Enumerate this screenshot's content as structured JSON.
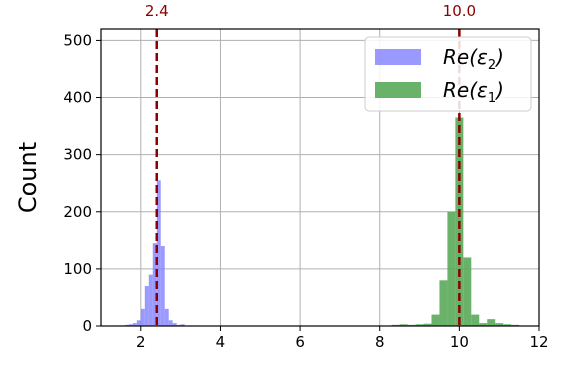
{
  "chart_data": {
    "type": "bar",
    "ylabel": "Count",
    "xlim": [
      1,
      12
    ],
    "ylim": [
      0,
      520
    ],
    "xticks": [
      "2",
      "4",
      "6",
      "8",
      "10",
      "12"
    ],
    "yticks": [
      "0",
      "100",
      "200",
      "300",
      "400",
      "500"
    ],
    "grid": true,
    "legend_position": "top-right",
    "vlines": [
      {
        "x": 2.4,
        "label": "2.4",
        "color": "#8b0000"
      },
      {
        "x": 10.0,
        "label": "10.0",
        "color": "#8b0000"
      }
    ],
    "series": [
      {
        "name": "Re(ε₂)",
        "color": "#8080ff",
        "bin_width": 0.1,
        "bins": [
          {
            "x": 1.45,
            "y": 1
          },
          {
            "x": 1.55,
            "y": 1
          },
          {
            "x": 1.65,
            "y": 2
          },
          {
            "x": 1.75,
            "y": 3
          },
          {
            "x": 1.85,
            "y": 5
          },
          {
            "x": 1.95,
            "y": 10
          },
          {
            "x": 2.05,
            "y": 30
          },
          {
            "x": 2.15,
            "y": 70
          },
          {
            "x": 2.25,
            "y": 90
          },
          {
            "x": 2.35,
            "y": 145
          },
          {
            "x": 2.45,
            "y": 255
          },
          {
            "x": 2.55,
            "y": 140
          },
          {
            "x": 2.65,
            "y": 30
          },
          {
            "x": 2.75,
            "y": 10
          },
          {
            "x": 2.85,
            "y": 5
          },
          {
            "x": 2.95,
            "y": 2
          },
          {
            "x": 3.05,
            "y": 3
          },
          {
            "x": 3.25,
            "y": 1
          }
        ]
      },
      {
        "name": "Re(ε₁)",
        "color": "#5aa85a",
        "bin_width": 0.2,
        "bins": [
          {
            "x": 8.4,
            "y": 2
          },
          {
            "x": 8.6,
            "y": 3
          },
          {
            "x": 8.8,
            "y": 2
          },
          {
            "x": 9.0,
            "y": 3
          },
          {
            "x": 9.2,
            "y": 4
          },
          {
            "x": 9.4,
            "y": 20
          },
          {
            "x": 9.6,
            "y": 80
          },
          {
            "x": 9.8,
            "y": 200
          },
          {
            "x": 10.0,
            "y": 365
          },
          {
            "x": 10.2,
            "y": 120
          },
          {
            "x": 10.4,
            "y": 20
          },
          {
            "x": 10.6,
            "y": 5
          },
          {
            "x": 10.8,
            "y": 12
          },
          {
            "x": 11.0,
            "y": 5
          },
          {
            "x": 11.2,
            "y": 3
          },
          {
            "x": 11.4,
            "y": 2
          }
        ]
      }
    ]
  }
}
